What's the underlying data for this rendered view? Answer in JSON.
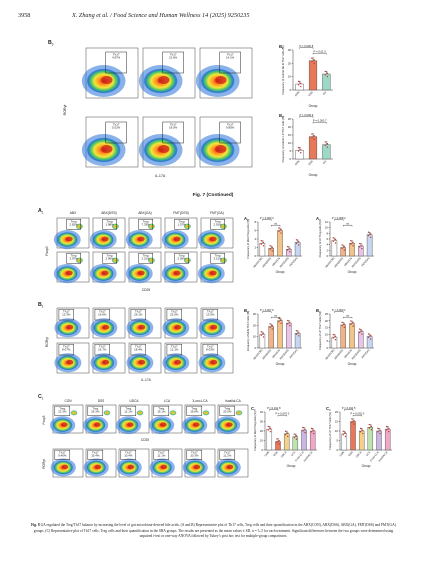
{
  "header": {
    "page_number": "3958",
    "running_title": "X. Zhang et al. / Food Science and Human Wellness 14 (2025) 9250235"
  },
  "fig7": {
    "caption": "Fig. 7 (Continued)",
    "panel_label": "B",
    "panel_sub": "3",
    "axis_x": "IL-17A",
    "axis_y": "RORγt",
    "gate_label": "Th17",
    "values_top": [
      "4.97%",
      "21.6%",
      "14.1%"
    ],
    "values_bot": [
      "5.02%",
      "18.0%",
      "9.85%"
    ],
    "chart_b1": {
      "panel": "B",
      "sub": "1",
      "ylabel": "Frequency of colonic MLN Th17 cells (%)",
      "yticks": [
        "0",
        "10",
        "20",
        "30"
      ],
      "ymax": 30,
      "group_ticks": [
        "CON",
        "DSS",
        "GA"
      ],
      "values": [
        4.5,
        22.0,
        12.0
      ],
      "colors": [
        "#ffffff",
        "#e8785a",
        "#9ed9c8"
      ],
      "p1": "P = 0.000 8",
      "p2": "P = 0.01 0",
      "xlabel": "Group"
    },
    "chart_b2": {
      "panel": "B",
      "sub": "2",
      "ylabel": "Frequency of colonic LP Th17 cells (%)",
      "yticks": [
        "0",
        "5",
        "10",
        "15",
        "20",
        "25"
      ],
      "ymax": 25,
      "group_ticks": [
        "CON",
        "DSS",
        "GA"
      ],
      "values": [
        5.5,
        14.0,
        9.0
      ],
      "colors": [
        "#ffffff",
        "#e8785a",
        "#9ed9c8"
      ],
      "p1": "P = 0.009 9",
      "p2": "P = 0.000 7",
      "xlabel": "Group"
    }
  },
  "fig8": {
    "A": {
      "label": "A",
      "sub": "1",
      "headers": [
        "ABX",
        "ABX(DSS)",
        "ABX(GA)",
        "FMT(DSS)",
        "FMT(GA)"
      ],
      "gate_label": "Treg",
      "values_top": [
        "2.82%",
        "1.88%",
        "7.33%",
        "1.57%",
        "2.91%"
      ],
      "values_bot": [
        "3.97%",
        "2.96%",
        "2.21%",
        "2.56%",
        "3.12%"
      ],
      "axis_x": "CD25",
      "axis_y": "Foxp3",
      "chart_a2": {
        "panel": "A",
        "sub": "2",
        "ylabel": "Frequency of MLN Treg cells (%)",
        "yticks": [
          "0",
          "2",
          "4",
          "6",
          "8"
        ],
        "ymax": 8,
        "group_ticks": [
          "ABX(CON)",
          "ABX(DSS)",
          "ABX(GA)",
          "FMT(DSS)",
          "FMT(GA)"
        ],
        "values": [
          3.0,
          1.8,
          6.0,
          1.6,
          3.2
        ],
        "colors": [
          "#ffffff",
          "#f2b38a",
          "#f2c48a",
          "#e8c4e8",
          "#c7d6f2"
        ],
        "p1": "P = 0.000 3",
        "p2": "ns",
        "xlabel": "Group"
      },
      "chart_a3": {
        "panel": "A",
        "sub": "3",
        "ylabel": "Frequency of LP Treg cells (%)",
        "yticks": [
          "0",
          "2",
          "4",
          "6",
          "8",
          "10",
          "12"
        ],
        "ymax": 12,
        "group_ticks": [
          "ABX(CON)",
          "ABX(DSS)",
          "ABX(GA)",
          "FMT(DSS)",
          "FMT(GA)"
        ],
        "values": [
          5.5,
          3.0,
          4.5,
          3.5,
          7.5
        ],
        "colors": [
          "#ffffff",
          "#f2b38a",
          "#f2c48a",
          "#e8c4e8",
          "#c7d6f2"
        ],
        "p1": "P = 0.008 2",
        "p2": "ns",
        "xlabel": "Group"
      }
    },
    "B": {
      "label": "B",
      "sub": "1",
      "gate_label": "Th17",
      "values_top": [
        "13.3%",
        "19.6%",
        "26.1%",
        "23.0%",
        "13.5%"
      ],
      "values_bot": [
        "8.07%",
        "16.7%",
        "18.4%",
        "12.1%",
        "8.03%"
      ],
      "axis_x": "IL-17A",
      "axis_y": "RORγt",
      "chart_b2": {
        "panel": "B",
        "sub": "2",
        "ylabel": "Frequency of MLN Th17 cells (%)",
        "yticks": [
          "0",
          "10",
          "20",
          "30"
        ],
        "ymax": 30,
        "group_ticks": [
          "ABX(CON)",
          "ABX(DSS)",
          "ABX(GA)",
          "FMT(DSS)",
          "FMT(GA)"
        ],
        "values": [
          12.0,
          19.0,
          24.0,
          22.0,
          13.0
        ],
        "colors": [
          "#ffffff",
          "#f2b38a",
          "#f2c48a",
          "#e8c4e8",
          "#c7d6f2"
        ],
        "p1": "P = 0.007 6",
        "p2": "ns",
        "xlabel": "Group"
      },
      "chart_b3": {
        "panel": "B",
        "sub": "3",
        "ylabel": "Frequency of LP Th17 cells (%)",
        "yticks": [
          "0",
          "5",
          "10",
          "15",
          "20",
          "25"
        ],
        "ymax": 25,
        "group_ticks": [
          "ABX(CON)",
          "ABX(DSS)",
          "ABX(GA)",
          "FMT(DSS)",
          "FMT(GA)"
        ],
        "values": [
          8.0,
          17.0,
          18.0,
          12.0,
          8.5
        ],
        "colors": [
          "#ffffff",
          "#f2b38a",
          "#f2c48a",
          "#e8c4e8",
          "#c7d6f2"
        ],
        "p1": "P < 0.000 1",
        "p2": "ns",
        "xlabel": "Group"
      }
    },
    "C": {
      "label": "C",
      "sub": "1",
      "headers": [
        "CON",
        "DSS",
        "UDCA",
        "LCA",
        "3-oxo-LCA",
        "IsoalloLCA"
      ],
      "gate_label_top": "Treg",
      "gate_label_bot": "Th17",
      "values_top": [
        "22.3%",
        "26.3%",
        "12.1%",
        "19.1%",
        "19.8%",
        "20.0%"
      ],
      "values_bot": [
        "9.46%",
        "15.4%",
        "10.4%",
        "12.1%",
        "10.3%",
        "11.2%"
      ],
      "axis_x": "CD25",
      "axis_y_top": "Foxp3",
      "axis_y_bot": "RORγt",
      "chart_c2": {
        "panel": "C",
        "sub": "2",
        "ylabel": "Frequency of MLN Treg cells (%)",
        "yticks": [
          "0",
          "10",
          "20",
          "30",
          "40"
        ],
        "ymax": 40,
        "group_ticks": [
          "CON",
          "DSS",
          "UDCA",
          "LCA",
          "3-oxo-LCA",
          "IsoalloLCA"
        ],
        "values": [
          22.0,
          9.0,
          17.0,
          14.0,
          21.0,
          20.0
        ],
        "colors": [
          "#ffffff",
          "#e8785a",
          "#f2d28a",
          "#bfe3b0",
          "#c9b6e4",
          "#f2a6c8"
        ],
        "p1": "P = 0.011 8",
        "p2": "P = 0.047 0",
        "xlabel": "Group"
      },
      "chart_c3": {
        "panel": "C",
        "sub": "3",
        "ylabel": "Frequency of LP Th17 cells (%)",
        "yticks": [
          "0",
          "5",
          "10",
          "15",
          "20"
        ],
        "ymax": 20,
        "group_ticks": [
          "CON",
          "DSS",
          "UDCA",
          "LCA",
          "3-oxo-LCA",
          "IsoalloLCA"
        ],
        "values": [
          8.5,
          15.0,
          10.0,
          12.0,
          10.0,
          11.0
        ],
        "colors": [
          "#ffffff",
          "#e8785a",
          "#f2d28a",
          "#bfe3b0",
          "#c9b6e4",
          "#f2a6c8"
        ],
        "p1": "P = 0.041 5",
        "p2": "P = 0.002 0",
        "xlabel": "Group"
      }
    },
    "caption": {
      "lead": "Fig. 8",
      "text": "GA regulated the Treg/Th17 balance by increasing the level of gut microbiota-derived bile acids. (A and B) Representative plot of Th17 cells, Treg cells and their quantification in the ABX(CON), ABX(DSS), ABX(GA), FMT(DSS) and FMT(GA) groups. (C) Representative plot of Th17 cells, Treg cells and their quantification in the SBA groups. The results are presented as the mean values ± SD, n = 3–5 for each treatment. Significant differences between the two groups were determined using unpaired t-test or one-way ANOVA followed by Tukey’s post hoc test for multiple-group comparisons."
    }
  }
}
